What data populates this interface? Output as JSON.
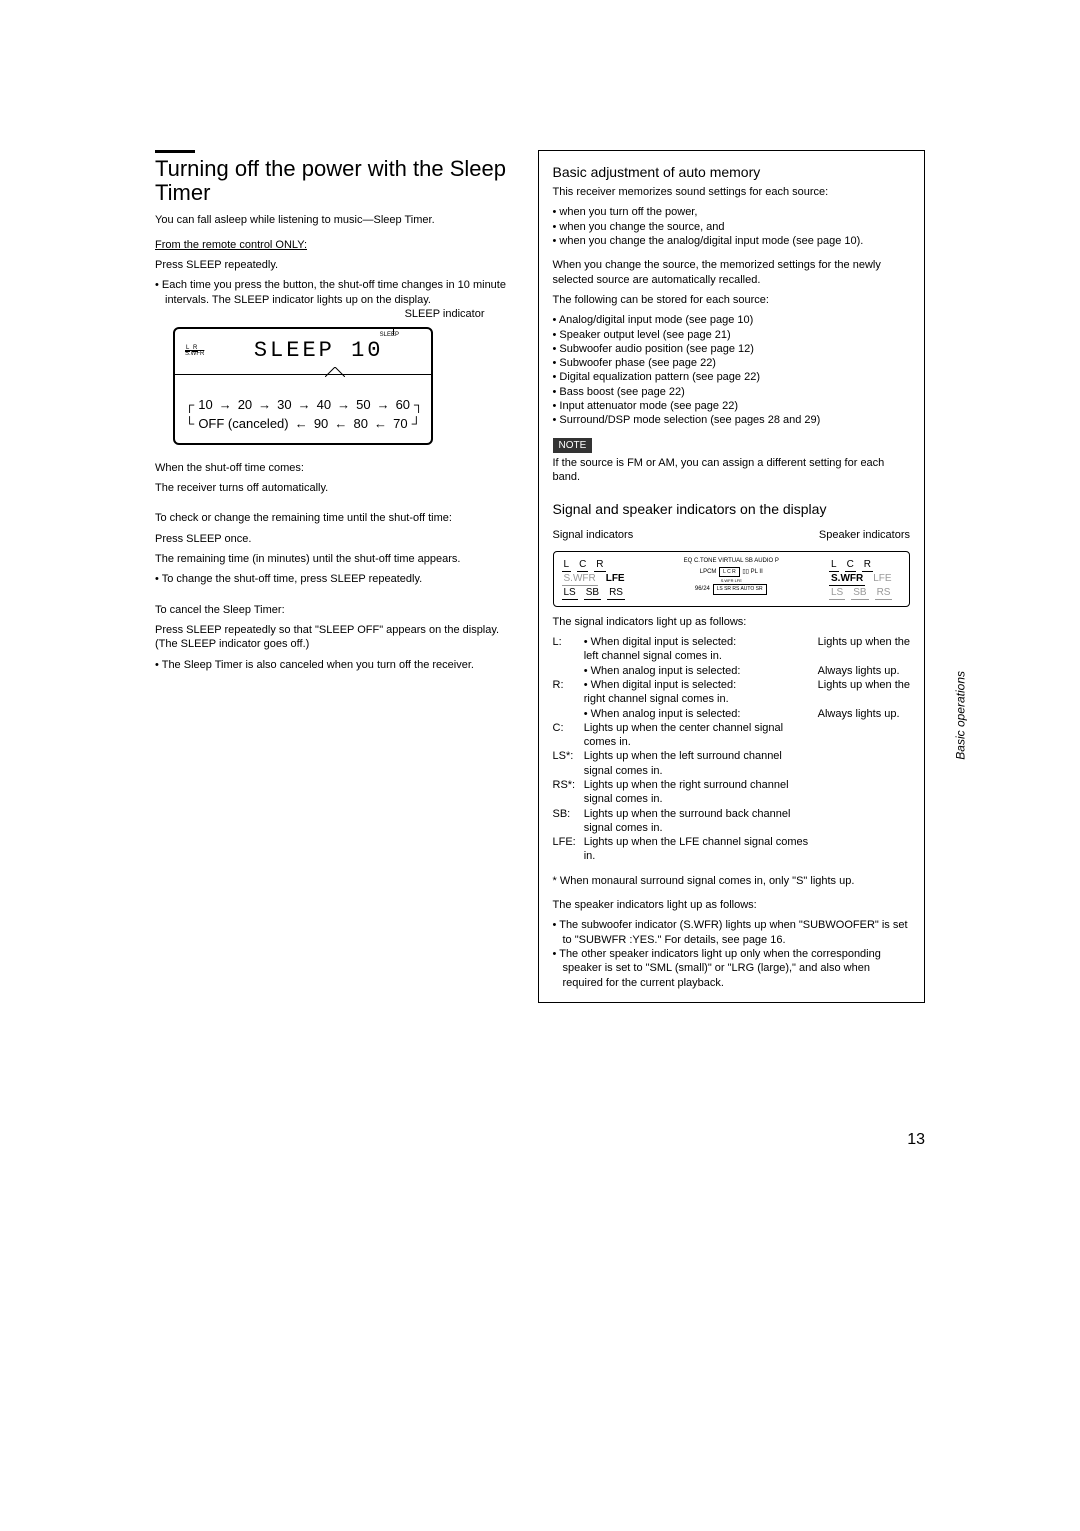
{
  "left": {
    "title": "Turning off the power with the Sleep Timer",
    "intro": "You can fall asleep while listening to music—Sleep Timer.",
    "from": "From the remote control ONLY:",
    "press": "Press SLEEP repeatedly.",
    "bullet1": "Each time you press the button, the shut-off time changes in 10 minute intervals. The SLEEP indicator lights up on the display.",
    "sleep_indicator_label": "SLEEP indicator",
    "display_text": "SLEEP  10",
    "mini_sleep": "SLEEP",
    "flow_values": [
      "10",
      "20",
      "30",
      "40",
      "50",
      "60"
    ],
    "flow_bottom_left": "OFF (canceled)",
    "flow_bottom": [
      "90",
      "80",
      "70"
    ],
    "when_shutoff_h": "When the shut-off time comes:",
    "when_shutoff_b": "The receiver turns off automatically.",
    "check_h": "To check or change the remaining time until the shut-off time:",
    "check_b1": "Press SLEEP once.",
    "check_b2": "The remaining time (in minutes) until the shut-off time appears.",
    "check_bullet": "To change the shut-off time, press SLEEP repeatedly.",
    "cancel_h": "To cancel the Sleep Timer:",
    "cancel_b": "Press SLEEP repeatedly so that \"SLEEP OFF\" appears on the display. (The SLEEP indicator goes off.)",
    "cancel_bullet": "The Sleep Timer is also canceled when you turn off the receiver."
  },
  "right": {
    "h1": "Basic adjustment of auto memory",
    "p1": "This receiver memorizes sound settings for each source:",
    "list1": [
      "when you turn off the power,",
      "when you change the source, and",
      "when you change the analog/digital input mode (see page 10)."
    ],
    "p2a": "When you change the source, the memorized settings for the newly selected source are automatically recalled.",
    "p2b": "The following can be stored for each source:",
    "list2": [
      "Analog/digital input mode (see page 10)",
      "Speaker output level (see page 21)",
      "Subwoofer audio position (see page 12)",
      "Subwoofer phase (see page 22)",
      "Digital equalization pattern (see page 22)",
      "Bass boost (see page 22)",
      "Input attenuator mode (see page 22)",
      "Surround/DSP mode selection (see pages 28 and 29)"
    ],
    "note_label": "NOTE",
    "note_text": "If the source is FM or AM, you can assign a different setting for each band.",
    "h2": "Signal and speaker indicators on the display",
    "sig_label": "Signal indicators",
    "spk_label": "Speaker indicators",
    "ind_intro": "The signal indicators light up as follows:",
    "defs": [
      {
        "k": "L:",
        "v": "• When digital input is selected:",
        "r": "Lights up when the"
      },
      {
        "k": "",
        "v": "  left channel signal comes in.",
        "r": ""
      },
      {
        "k": "",
        "v": "• When analog input is selected:",
        "r": "Always lights up."
      },
      {
        "k": "R:",
        "v": "• When digital input is selected:",
        "r": "Lights up when the"
      },
      {
        "k": "",
        "v": "  right channel signal comes in.",
        "r": ""
      },
      {
        "k": "",
        "v": "• When analog input is selected:",
        "r": "Always lights up."
      },
      {
        "k": "C:",
        "v": "Lights up when the center channel signal comes in.",
        "r": ""
      },
      {
        "k": "LS*:",
        "v": "Lights up when the left surround channel signal comes in.",
        "r": ""
      },
      {
        "k": "RS*:",
        "v": "Lights up when the right surround channel signal comes in.",
        "r": ""
      },
      {
        "k": "SB:",
        "v": "Lights up when the surround back channel signal comes in.",
        "r": ""
      },
      {
        "k": "LFE:",
        "v": "Lights up when the LFE channel signal comes in.",
        "r": ""
      }
    ],
    "footnote": "* When monaural surround signal comes in, only \"S\" lights up.",
    "spk_intro": "The speaker indicators light up as follows:",
    "spk_list": [
      "The subwoofer indicator (S.WFR) lights up when \"SUBWOOFER\" is set to \"SUBWFR :YES.\" For details, see page 16.",
      "The other speaker indicators light up only when the corresponding speaker is set to \"SML (small)\" or \"LRG (large),\" and also when required for the current playback."
    ]
  },
  "side_label": "Basic operations",
  "page_num": "13",
  "ind": {
    "sig_top": [
      "L",
      "C",
      "R"
    ],
    "sig_mid_gray": "S.WFR",
    "sig_mid_bold": "LFE",
    "sig_bot": [
      "LS",
      "SB",
      "RS"
    ],
    "spk_top": [
      "L",
      "C",
      "R"
    ],
    "spk_mid_bold": "S.WFR",
    "spk_mid_gray": "LFE",
    "spk_bot": [
      "LS",
      "SB",
      "RS"
    ],
    "mid_top": "EQ  C.TONE  VIRTUAL SB  AUDIO P",
    "mid_lpcm": "LPCM",
    "mid_boxes": "L  C  R",
    "mid_9624": "96/24",
    "mid_bot": "LS SR RS  AUTO SR"
  }
}
